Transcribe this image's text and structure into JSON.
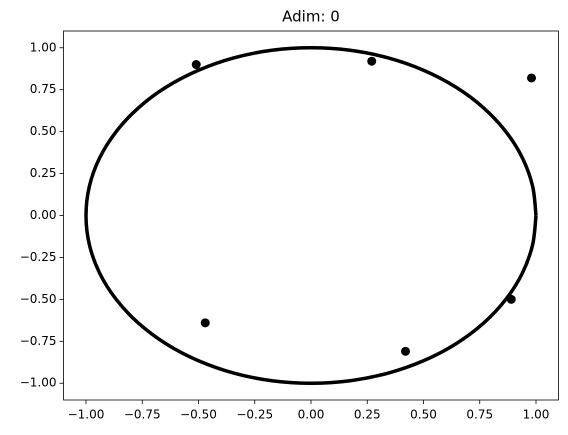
{
  "chart_data": {
    "type": "scatter",
    "title": "Adim: 0",
    "xlim": [
      -1.1,
      1.1
    ],
    "ylim": [
      -1.1,
      1.1
    ],
    "xticks": [
      {
        "value": -1,
        "label": "−1.00"
      },
      {
        "value": -0.75,
        "label": "−0.75"
      },
      {
        "value": -0.5,
        "label": "−0.50"
      },
      {
        "value": -0.25,
        "label": "−0.25"
      },
      {
        "value": 0,
        "label": "0.00"
      },
      {
        "value": 0.25,
        "label": "0.25"
      },
      {
        "value": 0.5,
        "label": "0.50"
      },
      {
        "value": 0.75,
        "label": "0.75"
      },
      {
        "value": 1,
        "label": "1.00"
      }
    ],
    "yticks": [
      {
        "value": -1,
        "label": "−1.00"
      },
      {
        "value": -0.75,
        "label": "−0.75"
      },
      {
        "value": -0.5,
        "label": "−0.50"
      },
      {
        "value": -0.25,
        "label": "−0.25"
      },
      {
        "value": 0,
        "label": "0.00"
      },
      {
        "value": 0.25,
        "label": "0.25"
      },
      {
        "value": 0.5,
        "label": "0.50"
      },
      {
        "value": 0.75,
        "label": "0.75"
      },
      {
        "value": 1,
        "label": "1.00"
      }
    ],
    "grid": false,
    "series": [
      {
        "type": "line",
        "color": "#000000",
        "x": [
          1,
          0.985,
          0.94,
          0.866,
          0.766,
          0.643,
          0.5,
          0.342,
          0.174,
          0,
          -0.174,
          -0.342,
          -0.5,
          -0.643,
          -0.766,
          -0.866,
          -0.94,
          -0.985,
          -1,
          -0.985,
          -0.94,
          -0.866,
          -0.766,
          -0.643,
          -0.5,
          -0.342,
          -0.174,
          0,
          0.174,
          0.342,
          0.5,
          0.643,
          0.766,
          0.866,
          0.94,
          0.985,
          1
        ],
        "y": [
          0,
          0.174,
          0.342,
          0.5,
          0.643,
          0.766,
          0.866,
          0.94,
          0.985,
          1,
          0.985,
          0.94,
          0.866,
          0.766,
          0.643,
          0.5,
          0.342,
          0.174,
          0,
          -0.174,
          -0.342,
          -0.5,
          -0.643,
          -0.766,
          -0.866,
          -0.94,
          -0.985,
          -1,
          -0.985,
          -0.94,
          -0.866,
          -0.766,
          -0.643,
          -0.5,
          -0.342,
          -0.174,
          0
        ]
      },
      {
        "type": "scatter",
        "color": "#000000",
        "x": [
          -0.51,
          0.27,
          0.98,
          -0.47,
          0.42,
          0.89
        ],
        "y": [
          0.9,
          0.92,
          0.82,
          -0.64,
          -0.81,
          -0.5
        ]
      }
    ]
  }
}
